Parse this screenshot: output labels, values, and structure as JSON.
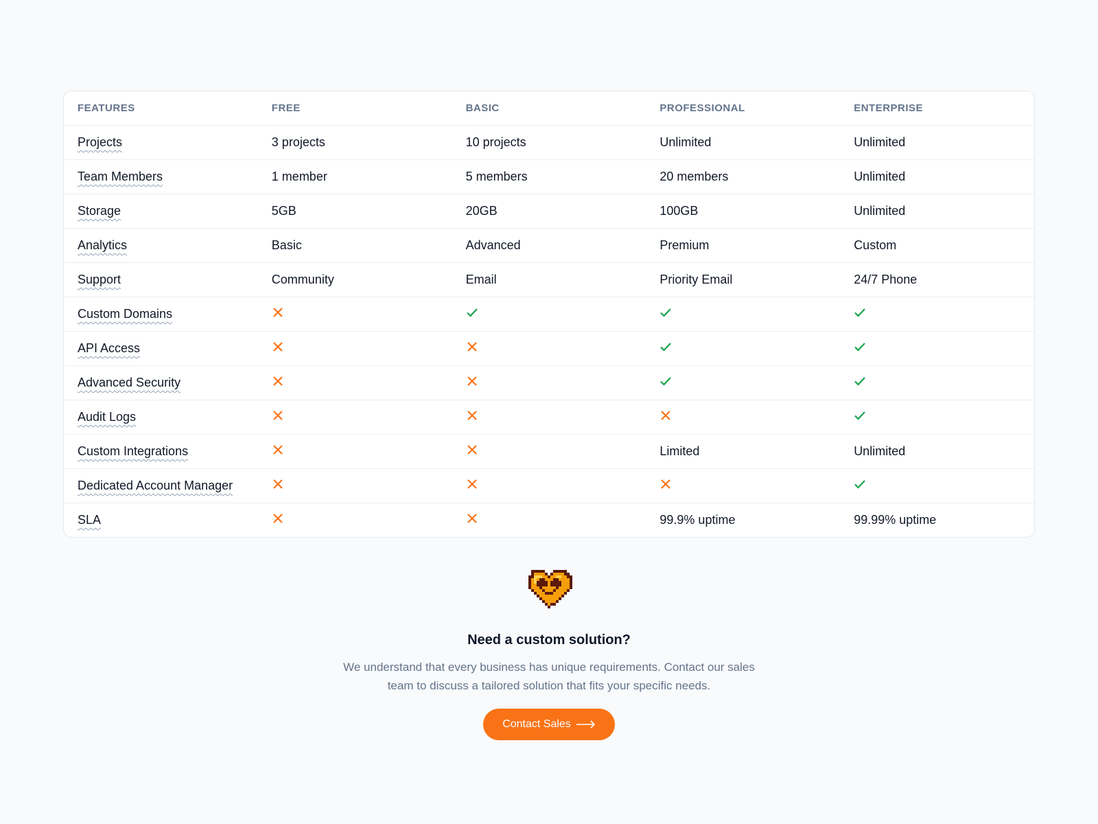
{
  "columns": [
    "FEATURES",
    "FREE",
    "BASIC",
    "PROFESSIONAL",
    "ENTERPRISE"
  ],
  "colors": {
    "check": "#16a34a",
    "cross": "#f97316",
    "accent": "#f97316"
  },
  "rows": [
    {
      "feature": "Projects",
      "values": [
        "3 projects",
        "10 projects",
        "Unlimited",
        "Unlimited"
      ]
    },
    {
      "feature": "Team Members",
      "values": [
        "1 member",
        "5 members",
        "20 members",
        "Unlimited"
      ]
    },
    {
      "feature": "Storage",
      "values": [
        "5GB",
        "20GB",
        "100GB",
        "Unlimited"
      ]
    },
    {
      "feature": "Analytics",
      "values": [
        "Basic",
        "Advanced",
        "Premium",
        "Custom"
      ]
    },
    {
      "feature": "Support",
      "values": [
        "Community",
        "Email",
        "Priority Email",
        "24/7 Phone"
      ]
    },
    {
      "feature": "Custom Domains",
      "values": [
        false,
        true,
        true,
        true
      ]
    },
    {
      "feature": "API Access",
      "values": [
        false,
        false,
        true,
        true
      ]
    },
    {
      "feature": "Advanced Security",
      "values": [
        false,
        false,
        true,
        true
      ]
    },
    {
      "feature": "Audit Logs",
      "values": [
        false,
        false,
        false,
        true
      ]
    },
    {
      "feature": "Custom Integrations",
      "values": [
        false,
        false,
        "Limited",
        "Unlimited"
      ]
    },
    {
      "feature": "Dedicated Account Manager",
      "values": [
        false,
        false,
        false,
        true
      ]
    },
    {
      "feature": "SLA",
      "values": [
        false,
        false,
        "99.9% uptime",
        "99.99% uptime"
      ]
    }
  ],
  "cta": {
    "icon": "pixel-heart-icon",
    "title": "Need a custom solution?",
    "description": "We understand that every business has unique requirements. Contact our sales team to discuss a tailored solution that fits your specific needs.",
    "button": "Contact Sales"
  }
}
